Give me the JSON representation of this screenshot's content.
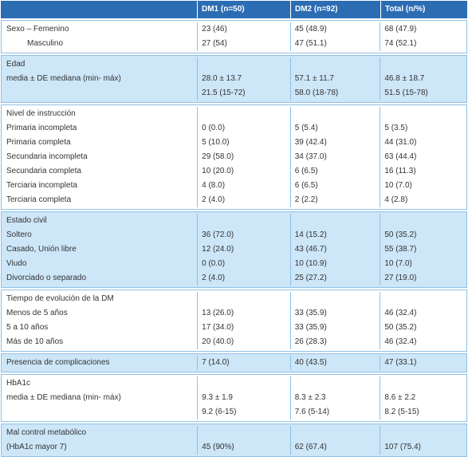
{
  "table": {
    "header": [
      "DM1 (n=50)",
      "DM2 (n=92)",
      "Total (n/%)"
    ],
    "groups": [
      {
        "rows": [
          [
            "Sexo – Femenino",
            "23 (46)",
            "45 (48.9)",
            "68 (47.9)"
          ],
          [
            "Masculino",
            "27 (54)",
            "47 (51.1)",
            "74 (52.1)"
          ]
        ]
      },
      {
        "rows": [
          [
            "Edad",
            null,
            null,
            null
          ],
          [
            "media ± DE mediana (min- máx)",
            "28.0 ± 13.7",
            "57.1 ± 11.7",
            "46.8 ± 18.7"
          ],
          [
            null,
            "21.5 (15-72)",
            "58.0 (18-78)",
            "51.5 (15-78)"
          ]
        ]
      },
      {
        "rows": [
          [
            "Nivel de instrucción",
            null,
            null,
            null
          ],
          [
            "Primaria incompleta",
            "0 (0.0)",
            "5 (5.4)",
            "5 (3.5)"
          ],
          [
            "Primaria completa",
            "5 (10.0)",
            "39 (42.4)",
            "44 (31.0)"
          ],
          [
            "Secundaria incompleta",
            "29 (58.0)",
            "34 (37.0)",
            "63 (44.4)"
          ],
          [
            "Secundaria completa",
            "10 (20.0)",
            "6 (6.5)",
            "16 (11.3)"
          ],
          [
            "Terciaria incompleta",
            "4 (8.0)",
            "6 (6.5)",
            "10 (7.0)"
          ],
          [
            "Terciaria completa",
            "2 (4.0)",
            "2 (2.2)",
            "4 (2.8)"
          ]
        ]
      },
      {
        "rows": [
          [
            "Estado civil",
            null,
            null,
            null
          ],
          [
            "Soltero",
            "36 (72.0)",
            "14 (15.2)",
            "50 (35.2)"
          ],
          [
            "Casado, Unión libre",
            "12 (24.0)",
            "43 (46.7)",
            "55 (38.7)"
          ],
          [
            "Viudo",
            "0 (0.0)",
            "10 (10.9)",
            "10 (7.0)"
          ],
          [
            "Divorciado o separado",
            "2 (4.0)",
            "25 (27.2)",
            "27 (19.0)"
          ]
        ]
      },
      {
        "rows": [
          [
            "Tiempo de evolución de la DM",
            null,
            null,
            null
          ],
          [
            "Menos de 5 años",
            "13 (26.0)",
            "33 (35.9)",
            "46 (32.4)"
          ],
          [
            "5 a 10 años",
            "17 (34.0)",
            "33 (35.9)",
            "50 (35.2)"
          ],
          [
            "Más de 10 años",
            "20 (40.0)",
            "26 (28.3)",
            "46 (32.4)"
          ]
        ]
      },
      {
        "rows": [
          [
            "Presencia de complicaciones",
            "7 (14.0)",
            "40 (43.5)",
            "47 (33.1)"
          ]
        ]
      },
      {
        "rows": [
          [
            "HbA1c",
            null,
            null,
            null
          ],
          [
            "media ± DE mediana (min- máx)",
            "9.3 ± 1.9",
            "8.3 ± 2.3",
            "8.6 ± 2.2"
          ],
          [
            null,
            "9.2 (6-15)",
            "7.6 (5-14)",
            "8.2 (5-15)"
          ]
        ]
      },
      {
        "rows": [
          [
            "Mal control metabólico",
            null,
            null,
            null
          ],
          [
            "(HbA1c mayor 7)",
            "45 (90%)",
            "62 (67.4)",
            "107 (75.4)"
          ]
        ]
      }
    ]
  }
}
